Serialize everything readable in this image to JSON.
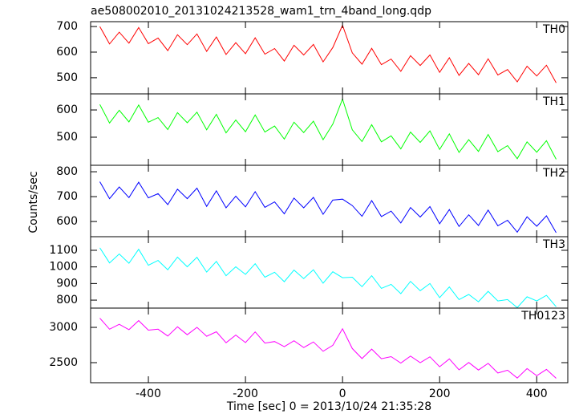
{
  "chart_data": [
    {
      "type": "line",
      "title": "ae508002010_20131024213528_wam1_trn_4band_long.qdp",
      "x": [
        -500,
        -480,
        -460,
        -440,
        -420,
        -400,
        -380,
        -360,
        -340,
        -320,
        -300,
        -280,
        -260,
        -240,
        -220,
        -200,
        -180,
        -160,
        -140,
        -120,
        -100,
        -80,
        -60,
        -40,
        -20,
        0,
        20,
        40,
        60,
        80,
        100,
        120,
        140,
        160,
        180,
        200,
        220,
        240,
        260,
        280,
        300,
        320,
        340,
        360,
        380,
        400,
        420,
        440
      ],
      "series": [
        {
          "name": "TH0",
          "color": "#ff0000",
          "values": [
            700,
            632,
            678,
            635,
            696,
            633,
            655,
            606,
            668,
            629,
            671,
            603,
            659,
            591,
            637,
            594,
            656,
            592,
            614,
            565,
            627,
            589,
            630,
            562,
            618,
            705,
            597,
            553,
            615,
            551,
            573,
            525,
            586,
            548,
            589,
            521,
            578,
            509,
            556,
            512,
            574,
            511,
            532,
            484,
            545,
            507,
            549,
            480
          ]
        }
      ],
      "xlim": [
        -519,
        464
      ],
      "ylim": [
        437,
        719
      ],
      "yticks": [
        500,
        600,
        700
      ]
    },
    {
      "type": "line",
      "x": [
        -500,
        -480,
        -460,
        -440,
        -420,
        -400,
        -380,
        -360,
        -340,
        -320,
        -300,
        -280,
        -260,
        -240,
        -220,
        -200,
        -180,
        -160,
        -140,
        -120,
        -100,
        -80,
        -60,
        -40,
        -20,
        0,
        20,
        40,
        60,
        80,
        100,
        120,
        140,
        160,
        180,
        200,
        220,
        240,
        260,
        280,
        300,
        320,
        340,
        360,
        380,
        400,
        420,
        440
      ],
      "series": [
        {
          "name": "TH1",
          "color": "#00ff00",
          "values": [
            620,
            552,
            599,
            556,
            618,
            555,
            572,
            528,
            590,
            553,
            592,
            527,
            584,
            516,
            563,
            520,
            582,
            519,
            541,
            493,
            555,
            517,
            559,
            491,
            548,
            640,
            527,
            484,
            546,
            483,
            505,
            457,
            519,
            481,
            523,
            455,
            512,
            444,
            491,
            448,
            510,
            447,
            469,
            421,
            483,
            445,
            487,
            419
          ]
        }
      ],
      "xlim": [
        -519,
        464
      ],
      "ylim": [
        397,
        659
      ],
      "yticks": [
        500,
        600
      ]
    },
    {
      "type": "line",
      "ylabel": "Counts/sec",
      "x": [
        -500,
        -480,
        -460,
        -440,
        -420,
        -400,
        -380,
        -360,
        -340,
        -320,
        -300,
        -280,
        -260,
        -240,
        -220,
        -200,
        -180,
        -160,
        -140,
        -120,
        -100,
        -80,
        -60,
        -40,
        -20,
        0,
        20,
        40,
        60,
        80,
        100,
        120,
        140,
        160,
        180,
        200,
        220,
        240,
        260,
        280,
        300,
        320,
        340,
        360,
        380,
        400,
        420,
        440
      ],
      "series": [
        {
          "name": "TH2",
          "color": "#0000ff",
          "values": [
            760,
            692,
            739,
            696,
            758,
            695,
            712,
            668,
            730,
            692,
            734,
            661,
            723,
            655,
            702,
            659,
            720,
            657,
            679,
            631,
            694,
            655,
            697,
            629,
            686,
            690,
            664,
            621,
            684,
            620,
            642,
            594,
            656,
            618,
            660,
            591,
            648,
            580,
            627,
            584,
            646,
            583,
            605,
            557,
            619,
            581,
            623,
            555
          ]
        }
      ],
      "xlim": [
        -519,
        464
      ],
      "ylim": [
        539,
        826
      ],
      "yticks": [
        600,
        700,
        800
      ]
    },
    {
      "type": "line",
      "x": [
        -500,
        -480,
        -460,
        -440,
        -420,
        -400,
        -380,
        -360,
        -340,
        -320,
        -300,
        -280,
        -260,
        -240,
        -220,
        -200,
        -180,
        -160,
        -140,
        -120,
        -100,
        -80,
        -60,
        -40,
        -20,
        0,
        20,
        40,
        60,
        80,
        100,
        120,
        140,
        160,
        180,
        200,
        220,
        240,
        260,
        280,
        300,
        320,
        340,
        360,
        380,
        400,
        420,
        440
      ],
      "series": [
        {
          "name": "TH3",
          "color": "#00ffff",
          "values": [
            1115,
            1024,
            1078,
            1022,
            1106,
            1010,
            1039,
            983,
            1059,
            1001,
            1058,
            969,
            1033,
            947,
            1001,
            955,
            1019,
            938,
            968,
            911,
            981,
            930,
            983,
            902,
            971,
            935,
            938,
            881,
            947,
            871,
            895,
            839,
            913,
            857,
            900,
            815,
            879,
            803,
            834,
            790,
            853,
            795,
            803,
            755,
            820,
            795,
            829,
            760
          ]
        }
      ],
      "xlim": [
        -519,
        464
      ],
      "ylim": [
        752,
        1182
      ],
      "yticks": [
        800,
        900,
        1000,
        1100
      ]
    },
    {
      "type": "line",
      "xlabel": "Time [sec] 0 = 2013/10/24 21:35:28",
      "x": [
        -500,
        -480,
        -460,
        -440,
        -420,
        -400,
        -380,
        -360,
        -340,
        -320,
        -300,
        -280,
        -260,
        -240,
        -220,
        -200,
        -180,
        -160,
        -140,
        -120,
        -100,
        -80,
        -60,
        -40,
        -20,
        0,
        20,
        40,
        60,
        80,
        100,
        120,
        140,
        160,
        180,
        200,
        220,
        240,
        260,
        280,
        300,
        320,
        340,
        360,
        380,
        400,
        420,
        440
      ],
      "series": [
        {
          "name": "TH0123",
          "color": "#ff00ff",
          "values": [
            3130,
            2974,
            3043,
            2967,
            3096,
            2960,
            2974,
            2878,
            3008,
            2896,
            3000,
            2874,
            2938,
            2782,
            2891,
            2784,
            2935,
            2778,
            2799,
            2726,
            2810,
            2714,
            2793,
            2662,
            2746,
            2980,
            2700,
            2558,
            2692,
            2556,
            2585,
            2494,
            2593,
            2500,
            2583,
            2442,
            2554,
            2398,
            2502,
            2396,
            2490,
            2354,
            2393,
            2282,
            2416,
            2315,
            2405,
            2278
          ]
        }
      ],
      "xlim": [
        -519,
        464
      ],
      "ylim": [
        2216,
        3273
      ],
      "yticks": [
        2500,
        3000
      ],
      "xticks": [
        -400,
        -200,
        0,
        200,
        400
      ]
    }
  ]
}
